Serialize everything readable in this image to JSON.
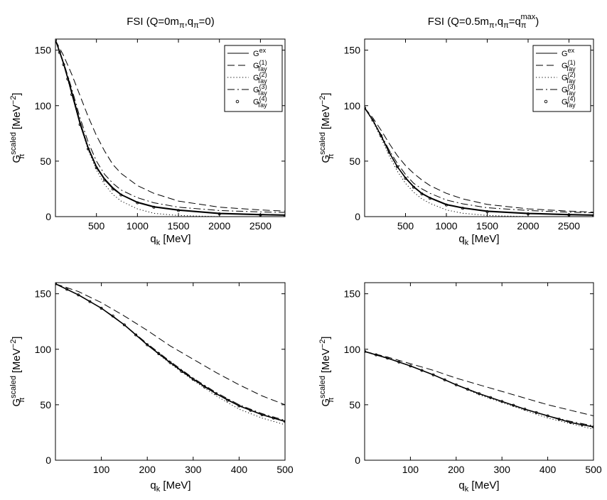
{
  "figure": {
    "panels": 4,
    "colors": {
      "axis": "#000000",
      "line": "#000000",
      "background": "#ffffff"
    }
  },
  "chart_data": [
    {
      "id": "p1",
      "type": "line",
      "title": "FSI (Q=0m",
      "title_parts": {
        "pre": "FSI (Q=0m",
        "sub1": "π",
        "mid": ",q",
        "sub2": "π",
        "post": "=0)"
      },
      "xlabel": {
        "base": "q",
        "sub": "k",
        "unit": " [MeV]"
      },
      "ylabel": {
        "base": "G",
        "sup": "scaled",
        "sub": "π",
        "unit": " [MeV",
        "unit_sup": "−2",
        "close": "]"
      },
      "xlim": [
        0,
        2800
      ],
      "ylim": [
        0,
        160
      ],
      "xticks": [
        500,
        1000,
        1500,
        2000,
        2500
      ],
      "xtick_labels": [
        "500",
        "1000",
        "1500",
        "2000",
        "2500"
      ],
      "yticks": [
        0,
        50,
        100,
        150
      ],
      "ytick_labels": [
        "0",
        "50",
        "100",
        "150"
      ],
      "legend_position": "top-right",
      "series": [
        {
          "name": "G_ex",
          "style": "solid",
          "x": [
            0,
            50,
            100,
            150,
            200,
            300,
            400,
            500,
            600,
            700,
            800,
            1000,
            1200,
            1500,
            2000,
            2500,
            2800
          ],
          "y": [
            159,
            149,
            138,
            125,
            112,
            85,
            62,
            45,
            34,
            26,
            20,
            13,
            9,
            6,
            3,
            2,
            1.5
          ]
        },
        {
          "name": "G_Tay(1)",
          "style": "dashed",
          "x": [
            0,
            100,
            200,
            300,
            400,
            500,
            600,
            700,
            800,
            1000,
            1200,
            1500,
            2000,
            2500,
            2800
          ],
          "y": [
            159,
            145,
            128,
            109,
            90,
            73,
            59,
            47,
            39,
            28,
            21,
            14,
            8.5,
            6,
            5
          ]
        },
        {
          "name": "G_Tay(2)",
          "style": "dotted",
          "x": [
            0,
            100,
            200,
            300,
            400,
            500,
            600,
            700,
            800,
            1000,
            1200,
            1500,
            2000,
            2500,
            2800
          ],
          "y": [
            159,
            137,
            110,
            83,
            60,
            42,
            29,
            20,
            14,
            7,
            3,
            1,
            0,
            0,
            0
          ]
        },
        {
          "name": "G_Tay(3)",
          "style": "dashdot",
          "x": [
            0,
            100,
            200,
            300,
            400,
            500,
            600,
            700,
            800,
            1000,
            1200,
            1500,
            2000,
            2500,
            2800
          ],
          "y": [
            159,
            139,
            115,
            89,
            67,
            50,
            38,
            30,
            24,
            17,
            12.5,
            8.5,
            5.5,
            4.2,
            3.8
          ]
        },
        {
          "name": "G_Tay(4)",
          "style": "markers",
          "x": [
            0,
            50,
            100,
            150,
            200,
            300,
            400,
            500,
            600,
            700,
            800,
            1000,
            1200,
            1500,
            2000,
            2500,
            2800
          ],
          "y": [
            159,
            148,
            137,
            124,
            110,
            83,
            61,
            44,
            33,
            25,
            19.5,
            12.5,
            8.5,
            5.5,
            2.5,
            1.5,
            1
          ]
        }
      ]
    },
    {
      "id": "p2",
      "type": "line",
      "title": "FSI (Q=0.5m",
      "title_parts": {
        "pre": "FSI (Q=0.5m",
        "sub1": "π",
        "mid": ",q",
        "sub2": "π",
        "mid2": "=q",
        "sub3": "π",
        "sup3": "max",
        "post": ")"
      },
      "xlabel": {
        "base": "q",
        "sub": "k",
        "unit": " [MeV]"
      },
      "ylabel": {
        "base": "G",
        "sup": "scaled",
        "sub": "π",
        "unit": " [MeV",
        "unit_sup": "−2",
        "close": "]"
      },
      "xlim": [
        0,
        2800
      ],
      "ylim": [
        0,
        160
      ],
      "xticks": [
        500,
        1000,
        1500,
        2000,
        2500
      ],
      "xtick_labels": [
        "500",
        "1000",
        "1500",
        "2000",
        "2500"
      ],
      "yticks": [
        0,
        50,
        100,
        150
      ],
      "ytick_labels": [
        "0",
        "50",
        "100",
        "150"
      ],
      "legend_position": "top-right",
      "series": [
        {
          "name": "G_ex",
          "style": "solid",
          "x": [
            0,
            100,
            200,
            300,
            400,
            500,
            600,
            700,
            800,
            1000,
            1200,
            1500,
            2000,
            2500,
            2800
          ],
          "y": [
            98,
            87,
            73,
            58,
            45,
            35,
            27,
            21,
            17,
            11,
            8,
            5,
            3,
            2,
            1.5
          ]
        },
        {
          "name": "G_Tay(1)",
          "style": "dashed",
          "x": [
            0,
            100,
            200,
            300,
            400,
            500,
            600,
            700,
            800,
            1000,
            1200,
            1500,
            2000,
            2500,
            2800
          ],
          "y": [
            98,
            89,
            78,
            66,
            55,
            46,
            39,
            33,
            28,
            21,
            16,
            11,
            7,
            5,
            4
          ]
        },
        {
          "name": "G_Tay(2)",
          "style": "dotted",
          "x": [
            0,
            100,
            200,
            300,
            400,
            500,
            600,
            700,
            800,
            1000,
            1200,
            1500,
            2000,
            2500,
            2800
          ],
          "y": [
            98,
            86,
            71,
            55,
            41,
            30,
            22,
            16,
            12,
            6,
            3,
            1,
            0,
            0,
            0
          ]
        },
        {
          "name": "G_Tay(3)",
          "style": "dashdot",
          "x": [
            0,
            100,
            200,
            300,
            400,
            500,
            600,
            700,
            800,
            1000,
            1200,
            1500,
            2000,
            2500,
            2800
          ],
          "y": [
            98,
            87,
            74,
            60,
            48,
            38,
            30,
            25,
            21,
            15,
            11.5,
            8,
            5.5,
            4,
            3.5
          ]
        },
        {
          "name": "G_Tay(4)",
          "style": "markers",
          "x": [
            0,
            100,
            200,
            300,
            400,
            500,
            600,
            700,
            800,
            1000,
            1200,
            1500,
            2000,
            2500,
            2800
          ],
          "y": [
            98,
            87,
            73,
            58,
            45,
            34.5,
            26.5,
            20.5,
            16.5,
            10.5,
            7.5,
            4.5,
            2.5,
            1.5,
            1
          ]
        }
      ]
    },
    {
      "id": "p3",
      "type": "line",
      "title": "",
      "xlabel": {
        "base": "q",
        "sub": "k",
        "unit": " [MeV]"
      },
      "ylabel": {
        "base": "G",
        "sup": "scaled",
        "sub": "π",
        "unit": " [MeV",
        "unit_sup": "−2",
        "close": "]"
      },
      "xlim": [
        0,
        500
      ],
      "ylim": [
        0,
        160
      ],
      "xticks": [
        100,
        200,
        300,
        400,
        500
      ],
      "xtick_labels": [
        "100",
        "200",
        "300",
        "400",
        "500"
      ],
      "yticks": [
        0,
        50,
        100,
        150
      ],
      "ytick_labels": [
        "0",
        "50",
        "100",
        "150"
      ],
      "series": [
        {
          "name": "G_ex",
          "style": "solid",
          "x": [
            0,
            50,
            100,
            150,
            200,
            250,
            300,
            350,
            400,
            450,
            500
          ],
          "y": [
            159,
            149,
            137,
            122,
            104,
            88,
            73,
            60,
            49,
            41,
            35
          ]
        },
        {
          "name": "G_Tay(1)",
          "style": "dashed",
          "x": [
            0,
            50,
            100,
            150,
            200,
            250,
            300,
            350,
            400,
            450,
            500
          ],
          "y": [
            159,
            152,
            142,
            130,
            117,
            103,
            91,
            79,
            68,
            58,
            50
          ]
        },
        {
          "name": "G_Tay(2)",
          "style": "dotted",
          "x": [
            0,
            50,
            100,
            150,
            200,
            250,
            300,
            350,
            400,
            450,
            500
          ],
          "y": [
            159,
            149,
            137,
            122,
            104,
            87,
            72,
            58,
            46,
            38,
            32
          ]
        },
        {
          "name": "G_Tay(3)",
          "style": "dashdot",
          "x": [
            0,
            50,
            100,
            150,
            200,
            250,
            300,
            350,
            400,
            450,
            500
          ],
          "y": [
            159,
            149,
            137,
            122,
            105,
            89,
            74,
            61,
            50,
            42,
            36
          ]
        },
        {
          "name": "G_Tay(4)",
          "style": "markers",
          "x": [
            0,
            25,
            50,
            75,
            100,
            125,
            150,
            175,
            200,
            225,
            250,
            275,
            300,
            325,
            350,
            375,
            400,
            425,
            450,
            475,
            500
          ],
          "y": [
            159,
            154,
            149,
            143,
            137,
            130,
            122,
            113,
            104,
            96,
            88,
            80,
            73,
            66,
            60,
            54,
            49,
            45,
            41,
            38,
            35
          ]
        }
      ]
    },
    {
      "id": "p4",
      "type": "line",
      "title": "",
      "xlabel": {
        "base": "q",
        "sub": "k",
        "unit": " [MeV]"
      },
      "ylabel": {
        "base": "G",
        "sup": "scaled",
        "sub": "π",
        "unit": " [MeV",
        "unit_sup": "−2",
        "close": "]"
      },
      "xlim": [
        0,
        500
      ],
      "ylim": [
        0,
        160
      ],
      "xticks": [
        100,
        200,
        300,
        400,
        500
      ],
      "xtick_labels": [
        "100",
        "200",
        "300",
        "400",
        "500"
      ],
      "yticks": [
        0,
        50,
        100,
        150
      ],
      "ytick_labels": [
        "0",
        "50",
        "100",
        "150"
      ],
      "series": [
        {
          "name": "G_ex",
          "style": "solid",
          "x": [
            0,
            50,
            100,
            150,
            200,
            250,
            300,
            350,
            400,
            450,
            500
          ],
          "y": [
            98,
            92,
            85,
            77,
            68,
            60,
            53,
            46,
            40,
            34,
            30
          ]
        },
        {
          "name": "G_Tay(1)",
          "style": "dashed",
          "x": [
            0,
            50,
            100,
            150,
            200,
            250,
            300,
            350,
            400,
            450,
            500
          ],
          "y": [
            98,
            93,
            87,
            81,
            74,
            68,
            62,
            56,
            50,
            45,
            40
          ]
        },
        {
          "name": "G_Tay(2)",
          "style": "dotted",
          "x": [
            0,
            50,
            100,
            150,
            200,
            250,
            300,
            350,
            400,
            450,
            500
          ],
          "y": [
            98,
            92,
            85,
            77,
            68,
            59,
            52,
            45,
            38,
            33,
            28
          ]
        },
        {
          "name": "G_Tay(3)",
          "style": "dashdot",
          "x": [
            0,
            50,
            100,
            150,
            200,
            250,
            300,
            350,
            400,
            450,
            500
          ],
          "y": [
            98,
            92,
            85,
            77,
            68,
            60,
            53,
            46,
            40,
            35,
            31
          ]
        },
        {
          "name": "G_Tay(4)",
          "style": "markers",
          "x": [
            0,
            25,
            50,
            75,
            100,
            125,
            150,
            175,
            200,
            225,
            250,
            275,
            300,
            325,
            350,
            375,
            400,
            425,
            450,
            475,
            500
          ],
          "y": [
            98,
            95,
            92,
            88.5,
            85,
            81,
            77,
            72.5,
            68,
            64,
            60,
            56.5,
            53,
            49.5,
            46,
            43,
            40,
            37,
            34,
            32,
            30
          ]
        }
      ]
    }
  ]
}
